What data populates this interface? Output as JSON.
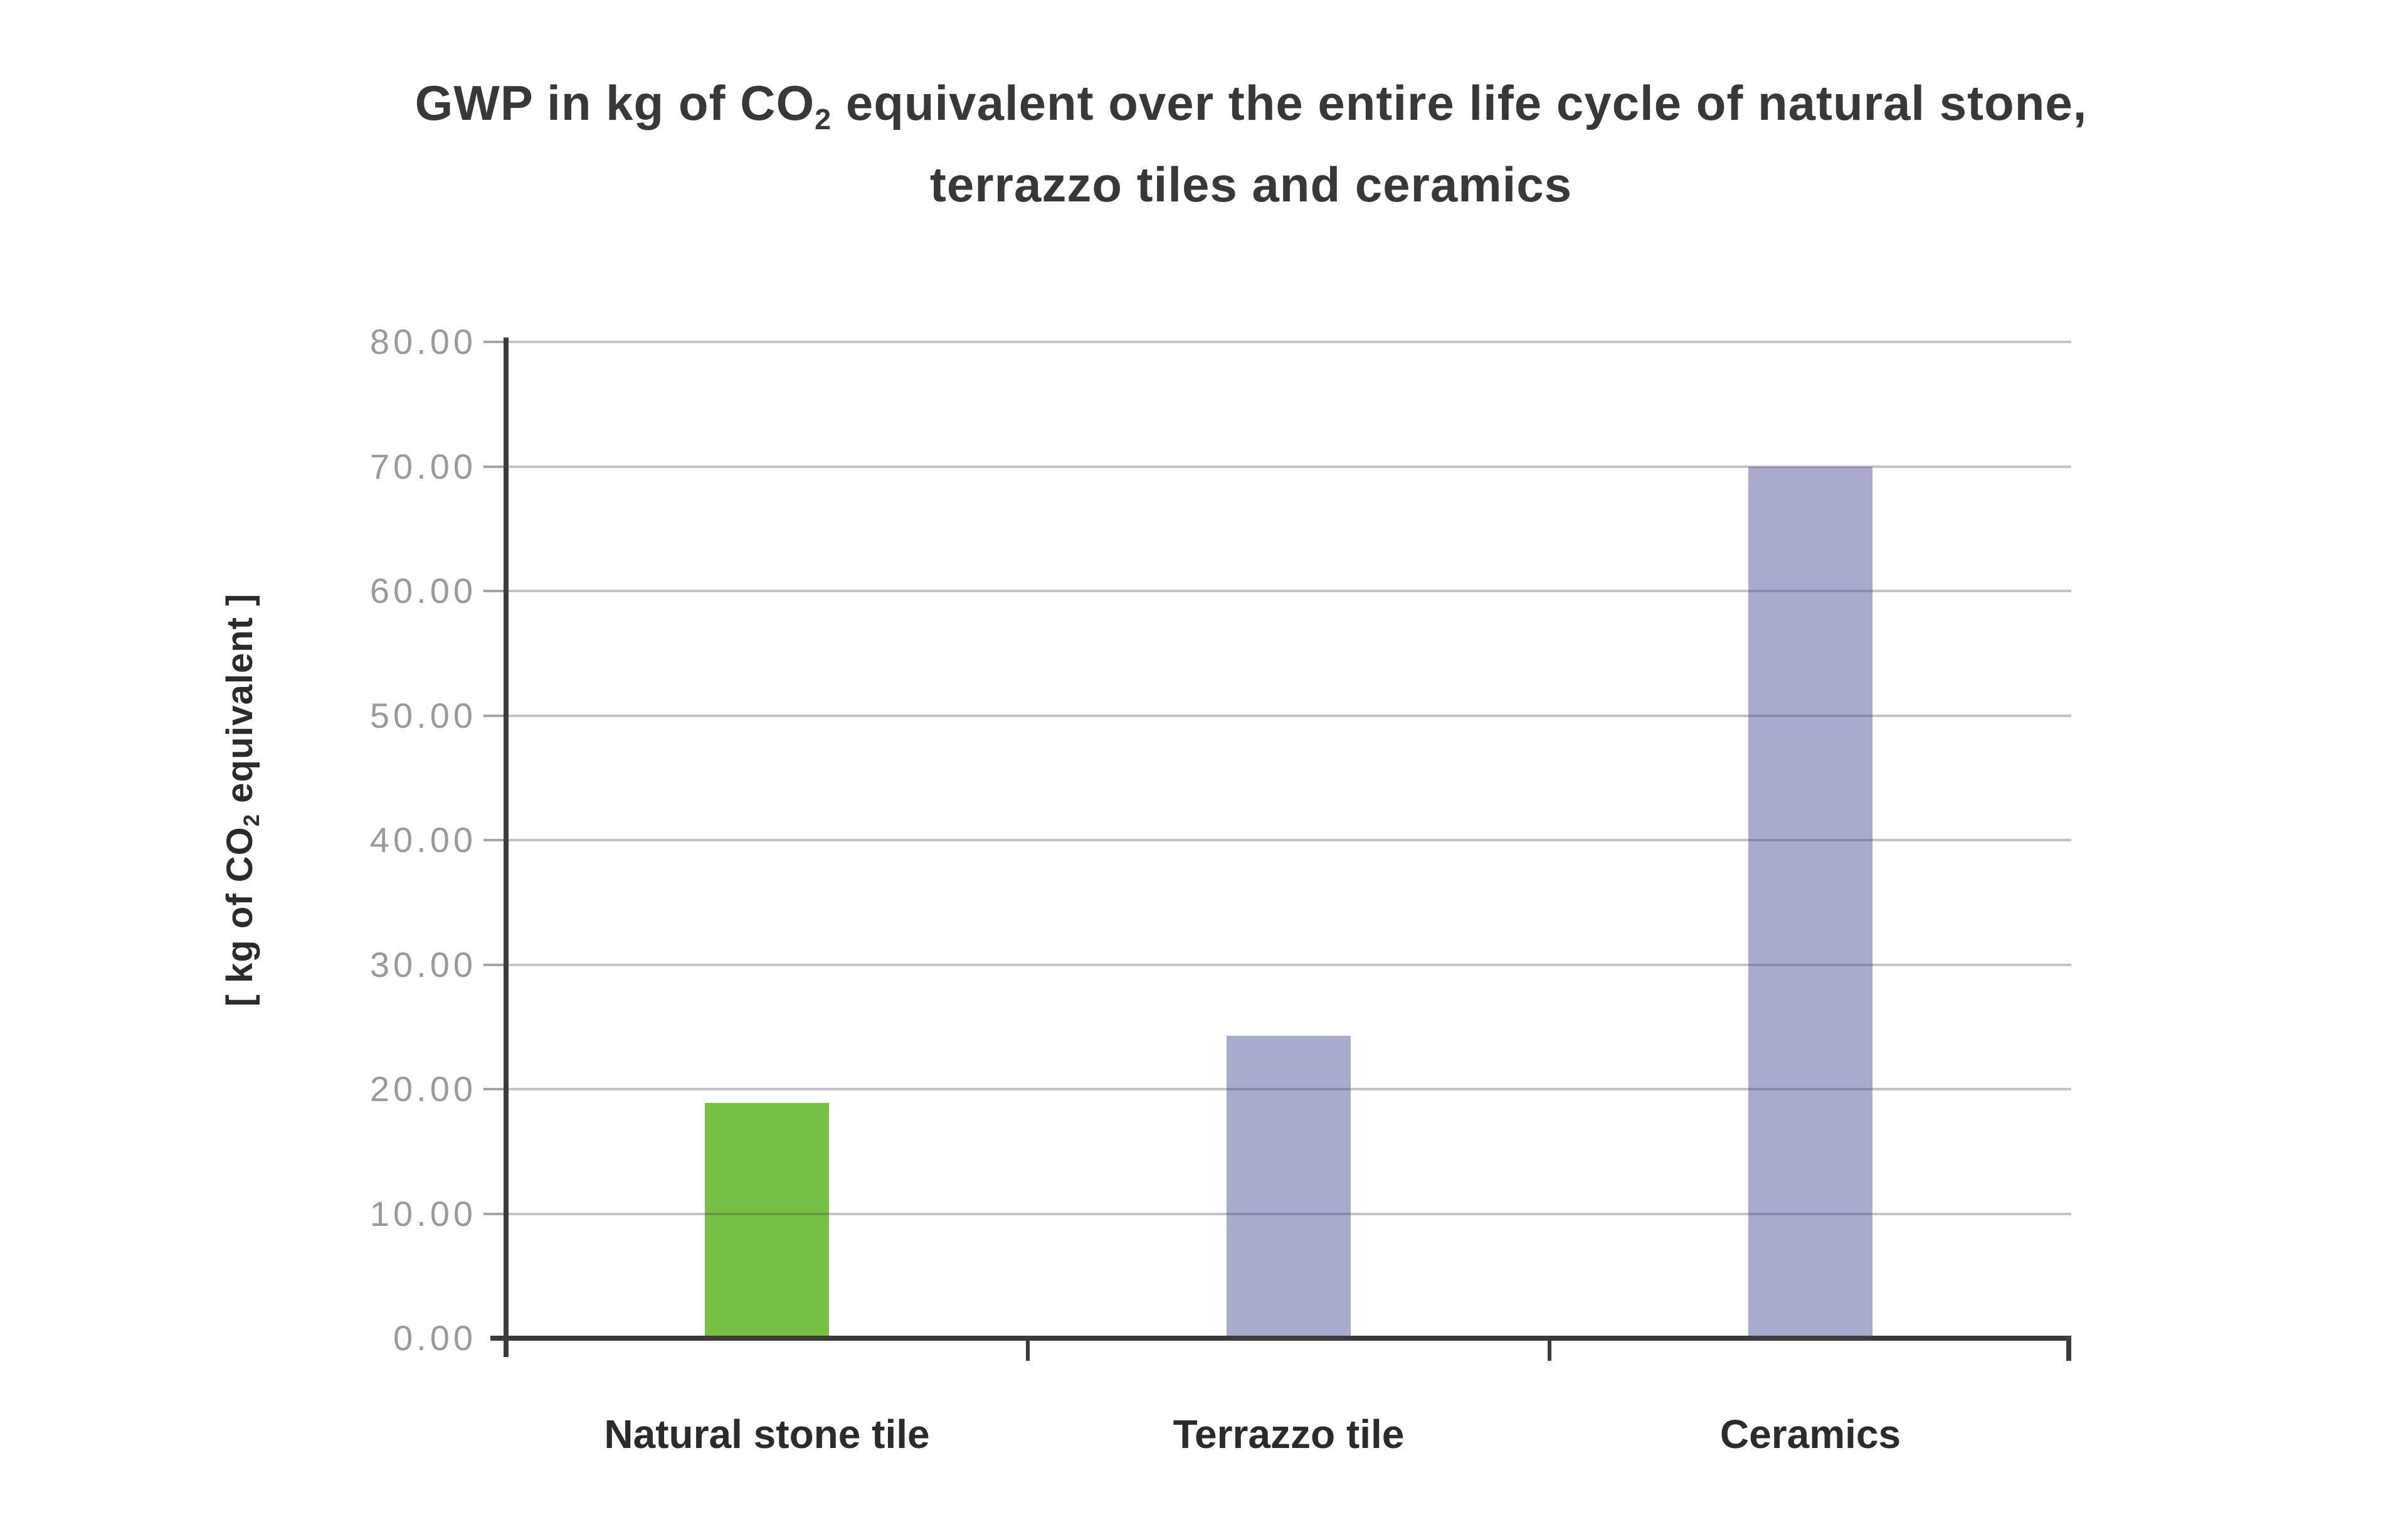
{
  "chart_data": {
    "type": "bar",
    "title": "GWP in kg of CO2 equivalent over the entire life cycle of natural stone, terrazzo tiles and ceramics",
    "title_parts": {
      "line1_pre": "GWP in kg of CO",
      "line1_sub": "2",
      "line1_post": " equivalent over the entire life cycle of natural stone,",
      "line2": "terrazzo tiles and ceramics"
    },
    "ylabel": "[ kg of CO2 equivalent ]",
    "ylabel_parts": {
      "pre": "[ kg of CO",
      "sub": "2",
      "post": " equivalent ]"
    },
    "xlabel": "",
    "categories": [
      "Natural stone tile",
      "Terrazzo tile",
      "Ceramics"
    ],
    "values": [
      18.9,
      24.3,
      70.0
    ],
    "bar_colors": [
      "#76C043",
      "#A9ABCE",
      "#A9ABCE"
    ],
    "ylim": [
      0,
      80
    ],
    "ytick_step": 10,
    "ytick_labels": [
      "0.00",
      "10.00",
      "20.00",
      "30.00",
      "40.00",
      "50.00",
      "60.00",
      "70.00",
      "80.00"
    ],
    "grid": true,
    "legend": false,
    "colors": {
      "background": "#FFFFFF",
      "axis": "#3B3B3B",
      "grid_on_white": "#C6C6C6",
      "grid_overlay": "rgba(68,68,88,0.32)",
      "tick_label": "#9A9A9A",
      "tick_mark": "#A5A5A5",
      "title_text": "#383838",
      "label_text": "#2B2B2B",
      "bar_green": "#76C043",
      "bar_purple": "#A9ABCE"
    }
  }
}
